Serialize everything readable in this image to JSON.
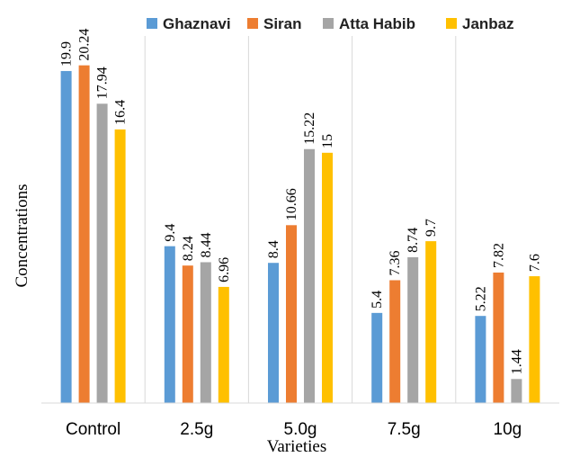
{
  "chart_data": {
    "type": "bar",
    "title": "",
    "xlabel": "Varieties",
    "ylabel": "Concentrations",
    "ylim": [
      0,
      22
    ],
    "grid": false,
    "legend_position": "top",
    "categories": [
      "Control",
      "2.5g",
      "5.0g",
      "7.5g",
      "10g"
    ],
    "series": [
      {
        "name": "Ghaznavi",
        "color": "#5B9BD5",
        "values": [
          19.9,
          9.4,
          8.4,
          5.4,
          5.22
        ]
      },
      {
        "name": "Siran",
        "color": "#ED7D31",
        "values": [
          20.24,
          8.24,
          10.66,
          7.36,
          7.82
        ]
      },
      {
        "name": "Atta Habib",
        "color": "#A5A5A5",
        "values": [
          17.94,
          8.44,
          15.22,
          8.74,
          1.44
        ]
      },
      {
        "name": "Janbaz",
        "color": "#FFC000",
        "values": [
          16.4,
          6.96,
          15,
          9.7,
          7.6
        ]
      }
    ]
  }
}
